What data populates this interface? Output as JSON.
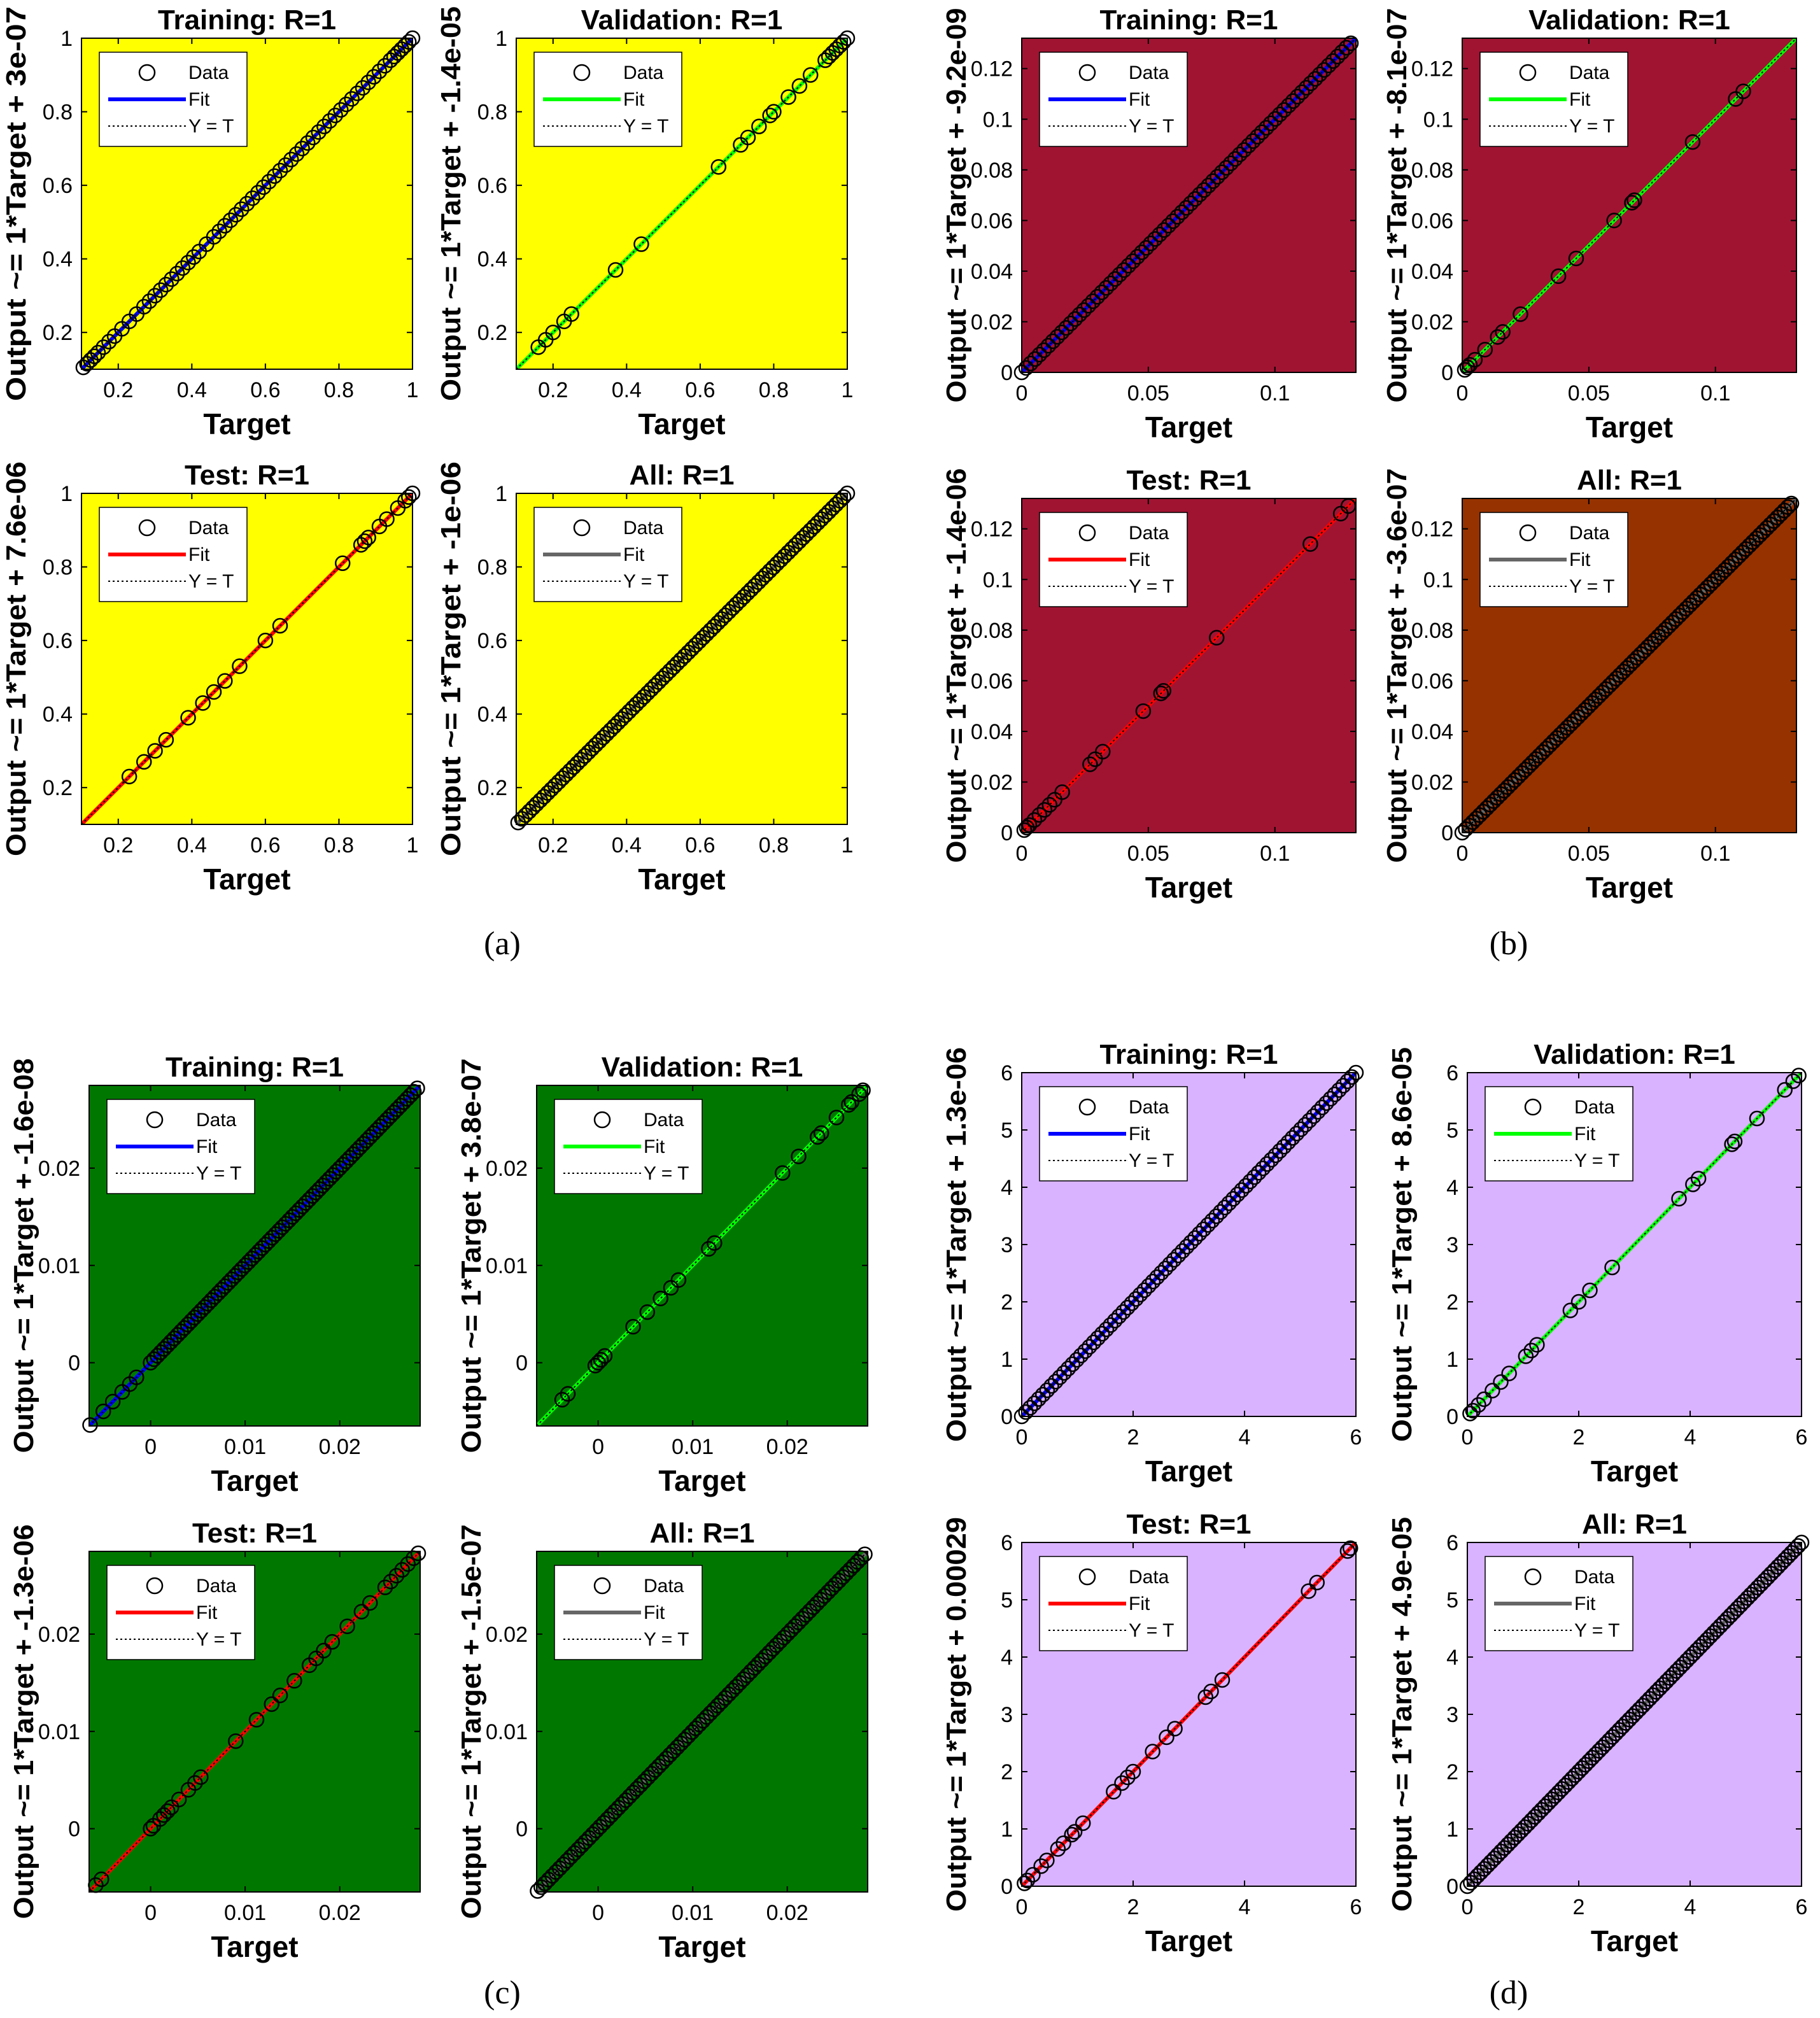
{
  "figure": {
    "panel_labels": [
      "(a)",
      "(b)",
      "(c)",
      "(d)"
    ]
  },
  "chart_data": [
    {
      "type": "scatter",
      "group": "(a)",
      "title": "Training: R=1",
      "xlabel": "Target",
      "ylabel": "Output ~= 1*Target + 3e-07",
      "xlim": [
        0.1,
        1
      ],
      "ylim": [
        0.1,
        1
      ],
      "xticks": [
        0.2,
        0.4,
        0.6,
        0.8,
        1
      ],
      "xtick_labels": [
        "0.2",
        "0.4",
        "0.6",
        "0.8",
        "1"
      ],
      "yticks": [
        0.2,
        0.4,
        0.6,
        0.8,
        1
      ],
      "ytick_labels": [
        "0.2",
        "0.4",
        "0.6",
        "0.8",
        "1"
      ],
      "background": "#ffff00",
      "fit_color": "#0000ff",
      "legend": [
        "Data",
        "Fit",
        "Y = T"
      ],
      "fit": {
        "slope": 1,
        "intercept": 3e-07
      },
      "points": [
        0.105,
        0.115,
        0.125,
        0.135,
        0.145,
        0.16,
        0.175,
        0.19,
        0.21,
        0.23,
        0.25,
        0.27,
        0.285,
        0.3,
        0.315,
        0.33,
        0.345,
        0.36,
        0.375,
        0.39,
        0.405,
        0.42,
        0.44,
        0.46,
        0.475,
        0.49,
        0.505,
        0.52,
        0.535,
        0.55,
        0.565,
        0.58,
        0.595,
        0.61,
        0.625,
        0.64,
        0.655,
        0.67,
        0.685,
        0.7,
        0.715,
        0.73,
        0.745,
        0.76,
        0.775,
        0.79,
        0.805,
        0.82,
        0.835,
        0.85,
        0.865,
        0.88,
        0.895,
        0.91,
        0.925,
        0.94,
        0.95,
        0.96,
        0.97,
        0.98,
        0.99,
        1.0
      ]
    },
    {
      "type": "scatter",
      "group": "(a)",
      "title": "Validation: R=1",
      "xlabel": "Target",
      "ylabel": "Output ~= 1*Target + -1.4e-05",
      "xlim": [
        0.1,
        1
      ],
      "ylim": [
        0.1,
        1
      ],
      "xticks": [
        0.2,
        0.4,
        0.6,
        0.8,
        1
      ],
      "xtick_labels": [
        "0.2",
        "0.4",
        "0.6",
        "0.8",
        "1"
      ],
      "yticks": [
        0.2,
        0.4,
        0.6,
        0.8,
        1
      ],
      "ytick_labels": [
        "0.2",
        "0.4",
        "0.6",
        "0.8",
        "1"
      ],
      "background": "#ffff00",
      "fit_color": "#00ff00",
      "legend": [
        "Data",
        "Fit",
        "Y = T"
      ],
      "fit": {
        "slope": 1,
        "intercept": -1.4e-05
      },
      "points": [
        0.16,
        0.18,
        0.2,
        0.23,
        0.25,
        0.37,
        0.44,
        0.65,
        0.71,
        0.73,
        0.76,
        0.79,
        0.8,
        0.84,
        0.87,
        0.9,
        0.94,
        0.95,
        0.96,
        0.97,
        0.98,
        0.99,
        1.0
      ]
    },
    {
      "type": "scatter",
      "group": "(a)",
      "title": "Test: R=1",
      "xlabel": "Target",
      "ylabel": "Output ~= 1*Target + 7.6e-06",
      "xlim": [
        0.1,
        1
      ],
      "ylim": [
        0.1,
        1
      ],
      "xticks": [
        0.2,
        0.4,
        0.6,
        0.8,
        1
      ],
      "xtick_labels": [
        "0.2",
        "0.4",
        "0.6",
        "0.8",
        "1"
      ],
      "yticks": [
        0.2,
        0.4,
        0.6,
        0.8,
        1
      ],
      "ytick_labels": [
        "0.2",
        "0.4",
        "0.6",
        "0.8",
        "1"
      ],
      "background": "#ffff00",
      "fit_color": "#ff0000",
      "legend": [
        "Data",
        "Fit",
        "Y = T"
      ],
      "fit": {
        "slope": 1,
        "intercept": 7.6e-06
      },
      "points": [
        0.23,
        0.27,
        0.3,
        0.33,
        0.39,
        0.43,
        0.46,
        0.49,
        0.53,
        0.6,
        0.64,
        0.81,
        0.86,
        0.87,
        0.88,
        0.91,
        0.93,
        0.96,
        0.98,
        0.99,
        1.0
      ]
    },
    {
      "type": "scatter",
      "group": "(a)",
      "title": "All: R=1",
      "xlabel": "Target",
      "ylabel": "Output ~= 1*Target + -1e-06",
      "xlim": [
        0.1,
        1
      ],
      "ylim": [
        0.1,
        1
      ],
      "xticks": [
        0.2,
        0.4,
        0.6,
        0.8,
        1
      ],
      "xtick_labels": [
        "0.2",
        "0.4",
        "0.6",
        "0.8",
        "1"
      ],
      "yticks": [
        0.2,
        0.4,
        0.6,
        0.8,
        1
      ],
      "ytick_labels": [
        "0.2",
        "0.4",
        "0.6",
        "0.8",
        "1"
      ],
      "background": "#ffff00",
      "fit_color": "#666666",
      "legend": [
        "Data",
        "Fit",
        "Y = T"
      ],
      "fit": {
        "slope": 1,
        "intercept": -1e-06
      },
      "dense": {
        "from": 0.105,
        "to": 1.0,
        "count": 90
      }
    },
    {
      "type": "scatter",
      "group": "(b)",
      "title": "Training: R=1",
      "xlabel": "Target",
      "ylabel": "Output ~= 1*Target + -9.2e-09",
      "xlim": [
        0,
        0.132
      ],
      "ylim": [
        0,
        0.132
      ],
      "xticks": [
        0,
        0.05,
        0.1
      ],
      "xtick_labels": [
        "0",
        "0.05",
        "0.1"
      ],
      "yticks": [
        0,
        0.02,
        0.04,
        0.06,
        0.08,
        0.1,
        0.12
      ],
      "ytick_labels": [
        "0",
        "0.02",
        "0.04",
        "0.06",
        "0.08",
        "0.1",
        "0.12"
      ],
      "background": "#a01432",
      "fit_color": "#0000ff",
      "legend": [
        "Data",
        "Fit",
        "Y = T"
      ],
      "fit": {
        "slope": 1,
        "intercept": -9.2e-09
      },
      "dense": {
        "from": 0,
        "to": 0.13,
        "count": 75
      }
    },
    {
      "type": "scatter",
      "group": "(b)",
      "title": "Validation: R=1",
      "xlabel": "Target",
      "ylabel": "Output ~= 1*Target + -8.1e-07",
      "xlim": [
        0,
        0.132
      ],
      "ylim": [
        0,
        0.132
      ],
      "xticks": [
        0,
        0.05,
        0.1
      ],
      "xtick_labels": [
        "0",
        "0.05",
        "0.1"
      ],
      "yticks": [
        0,
        0.02,
        0.04,
        0.06,
        0.08,
        0.1,
        0.12
      ],
      "ytick_labels": [
        "0",
        "0.02",
        "0.04",
        "0.06",
        "0.08",
        "0.1",
        "0.12"
      ],
      "background": "#a01432",
      "fit_color": "#00ff00",
      "legend": [
        "Data",
        "Fit",
        "Y = T"
      ],
      "fit": {
        "slope": 1,
        "intercept": -8.1e-07
      },
      "points": [
        0.001,
        0.002,
        0.003,
        0.005,
        0.009,
        0.014,
        0.016,
        0.023,
        0.038,
        0.045,
        0.06,
        0.067,
        0.068,
        0.091,
        0.108,
        0.111
      ]
    },
    {
      "type": "scatter",
      "group": "(b)",
      "title": "Test: R=1",
      "xlabel": "Target",
      "ylabel": "Output ~= 1*Target + -1.4e-06",
      "xlim": [
        0,
        0.132
      ],
      "ylim": [
        0,
        0.132
      ],
      "xticks": [
        0,
        0.05,
        0.1
      ],
      "xtick_labels": [
        "0",
        "0.05",
        "0.1"
      ],
      "yticks": [
        0,
        0.02,
        0.04,
        0.06,
        0.08,
        0.1,
        0.12
      ],
      "ytick_labels": [
        "0",
        "0.02",
        "0.04",
        "0.06",
        "0.08",
        "0.1",
        "0.12"
      ],
      "background": "#a01432",
      "fit_color": "#ff0000",
      "legend": [
        "Data",
        "Fit",
        "Y = T"
      ],
      "fit": {
        "slope": 1,
        "intercept": -1.4e-06
      },
      "points": [
        0.001,
        0.002,
        0.003,
        0.005,
        0.007,
        0.009,
        0.011,
        0.013,
        0.016,
        0.027,
        0.029,
        0.032,
        0.048,
        0.055,
        0.056,
        0.077,
        0.114,
        0.126,
        0.129
      ]
    },
    {
      "type": "scatter",
      "group": "(b)",
      "title": "All: R=1",
      "xlabel": "Target",
      "ylabel": "Output ~= 1*Target + -3.6e-07",
      "xlim": [
        0,
        0.132
      ],
      "ylim": [
        0,
        0.132
      ],
      "xticks": [
        0,
        0.05,
        0.1
      ],
      "xtick_labels": [
        "0",
        "0.05",
        "0.1"
      ],
      "yticks": [
        0,
        0.02,
        0.04,
        0.06,
        0.08,
        0.1,
        0.12
      ],
      "ytick_labels": [
        "0",
        "0.02",
        "0.04",
        "0.06",
        "0.08",
        "0.1",
        "0.12"
      ],
      "background": "#963200",
      "fit_color": "#666666",
      "legend": [
        "Data",
        "Fit",
        "Y = T"
      ],
      "fit": {
        "slope": 1,
        "intercept": -3.6e-07
      },
      "dense": {
        "from": 0,
        "to": 0.13,
        "count": 95
      }
    },
    {
      "type": "scatter",
      "group": "(c)",
      "title": "Training: R=1",
      "xlabel": "Target",
      "ylabel": "Output ~= 1*Target + -1.6e-08",
      "xlim": [
        -0.0065,
        0.0285
      ],
      "ylim": [
        -0.0065,
        0.0285
      ],
      "xticks": [
        0,
        0.01,
        0.02
      ],
      "xtick_labels": [
        "0",
        "0.01",
        "0.02"
      ],
      "yticks": [
        0,
        0.01,
        0.02
      ],
      "ytick_labels": [
        "0",
        "0.01",
        "0.02"
      ],
      "background": "#007800",
      "fit_color": "#0000ff",
      "legend": [
        "Data",
        "Fit",
        "Y = T"
      ],
      "fit": {
        "slope": 1,
        "intercept": -1.6e-08
      },
      "points": [
        -0.0064,
        -0.005,
        -0.004,
        -0.003,
        -0.0022,
        -0.0015
      ],
      "dense": {
        "from": 0,
        "to": 0.0282,
        "count": 80
      }
    },
    {
      "type": "scatter",
      "group": "(c)",
      "title": "Validation: R=1",
      "xlabel": "Target",
      "ylabel": "Output ~= 1*Target + 3.8e-07",
      "xlim": [
        -0.0065,
        0.0285
      ],
      "ylim": [
        -0.0065,
        0.0285
      ],
      "xticks": [
        0,
        0.01,
        0.02
      ],
      "xtick_labels": [
        "0",
        "0.01",
        "0.02"
      ],
      "yticks": [
        0,
        0.01,
        0.02
      ],
      "ytick_labels": [
        "0",
        "0.01",
        "0.02"
      ],
      "background": "#007800",
      "fit_color": "#00ff00",
      "legend": [
        "Data",
        "Fit",
        "Y = T"
      ],
      "fit": {
        "slope": 1,
        "intercept": 3.8e-07
      },
      "points": [
        -0.0038,
        -0.0032,
        -0.0003,
        0,
        0.0003,
        0.0007,
        0.0037,
        0.0052,
        0.0066,
        0.0077,
        0.0085,
        0.0117,
        0.0123,
        0.0195,
        0.0212,
        0.0232,
        0.0236,
        0.0252,
        0.0265,
        0.0268,
        0.0276,
        0.028
      ]
    },
    {
      "type": "scatter",
      "group": "(c)",
      "title": "Test: R=1",
      "xlabel": "Target",
      "ylabel": "Output ~= 1*Target + -1.3e-06",
      "xlim": [
        -0.0065,
        0.0285
      ],
      "ylim": [
        -0.0065,
        0.0285
      ],
      "xticks": [
        0,
        0.01,
        0.02
      ],
      "xtick_labels": [
        "0",
        "0.01",
        "0.02"
      ],
      "yticks": [
        0,
        0.01,
        0.02
      ],
      "ytick_labels": [
        "0",
        "0.01",
        "0.02"
      ],
      "background": "#007800",
      "fit_color": "#ff0000",
      "legend": [
        "Data",
        "Fit",
        "Y = T"
      ],
      "fit": {
        "slope": 1,
        "intercept": -1.3e-06
      },
      "points": [
        -0.0058,
        -0.0052,
        0,
        0.0003,
        0.001,
        0.0014,
        0.0018,
        0.0022,
        0.003,
        0.004,
        0.0047,
        0.0053,
        0.009,
        0.0112,
        0.0128,
        0.0137,
        0.0152,
        0.0168,
        0.0175,
        0.0183,
        0.0192,
        0.0208,
        0.0223,
        0.0232,
        0.0248,
        0.0254,
        0.026,
        0.0266,
        0.0272,
        0.0278,
        0.0283
      ]
    },
    {
      "type": "scatter",
      "group": "(c)",
      "title": "All: R=1",
      "xlabel": "Target",
      "ylabel": "Output ~= 1*Target + -1.5e-07",
      "xlim": [
        -0.0065,
        0.0285
      ],
      "ylim": [
        -0.0065,
        0.0285
      ],
      "xticks": [
        0,
        0.01,
        0.02
      ],
      "xtick_labels": [
        "0",
        "0.01",
        "0.02"
      ],
      "yticks": [
        0,
        0.01,
        0.02
      ],
      "ytick_labels": [
        "0",
        "0.01",
        "0.02"
      ],
      "background": "#007800",
      "fit_color": "#666666",
      "legend": [
        "Data",
        "Fit",
        "Y = T"
      ],
      "fit": {
        "slope": 1,
        "intercept": -1.5e-07
      },
      "dense": {
        "from": -0.0064,
        "to": 0.0282,
        "count": 90
      }
    },
    {
      "type": "scatter",
      "group": "(d)",
      "title": "Training: R=1",
      "xlabel": "Target",
      "ylabel": "Output ~= 1*Target + 1.3e-06",
      "xlim": [
        0,
        6
      ],
      "ylim": [
        0,
        6
      ],
      "xticks": [
        0,
        2,
        4,
        6
      ],
      "xtick_labels": [
        "0",
        "2",
        "4",
        "6"
      ],
      "yticks": [
        0,
        1,
        2,
        3,
        4,
        5,
        6
      ],
      "ytick_labels": [
        "0",
        "1",
        "2",
        "3",
        "4",
        "5",
        "6"
      ],
      "background": "#d9b3ff",
      "fit_color": "#0000ff",
      "legend": [
        "Data",
        "Fit",
        "Y = T"
      ],
      "fit": {
        "slope": 1,
        "intercept": 1.3e-06
      },
      "dense": {
        "from": 0,
        "to": 6,
        "count": 80
      }
    },
    {
      "type": "scatter",
      "group": "(d)",
      "title": "Validation: R=1",
      "xlabel": "Target",
      "ylabel": "Output ~= 1*Target + 8.6e-05",
      "xlim": [
        0,
        6
      ],
      "ylim": [
        0,
        6
      ],
      "xticks": [
        0,
        2,
        4,
        6
      ],
      "xtick_labels": [
        "0",
        "2",
        "4",
        "6"
      ],
      "yticks": [
        0,
        1,
        2,
        3,
        4,
        5,
        6
      ],
      "ytick_labels": [
        "0",
        "1",
        "2",
        "3",
        "4",
        "5",
        "6"
      ],
      "background": "#d9b3ff",
      "fit_color": "#00ff00",
      "legend": [
        "Data",
        "Fit",
        "Y = T"
      ],
      "fit": {
        "slope": 1,
        "intercept": 8.6e-05
      },
      "points": [
        0.05,
        0.1,
        0.2,
        0.3,
        0.45,
        0.6,
        0.75,
        1.05,
        1.15,
        1.25,
        1.85,
        2.0,
        2.2,
        2.6,
        3.8,
        4.05,
        4.15,
        4.75,
        4.8,
        5.2,
        5.7,
        5.85,
        5.95
      ]
    },
    {
      "type": "scatter",
      "group": "(d)",
      "title": "Test: R=1",
      "xlabel": "Target",
      "ylabel": "Output ~= 1*Target + 0.00029",
      "xlim": [
        0,
        6
      ],
      "ylim": [
        0,
        6
      ],
      "xticks": [
        0,
        2,
        4,
        6
      ],
      "xtick_labels": [
        "0",
        "2",
        "4",
        "6"
      ],
      "yticks": [
        0,
        1,
        2,
        3,
        4,
        5,
        6
      ],
      "ytick_labels": [
        "0",
        "1",
        "2",
        "3",
        "4",
        "5",
        "6"
      ],
      "background": "#d9b3ff",
      "fit_color": "#ff0000",
      "legend": [
        "Data",
        "Fit",
        "Y = T"
      ],
      "fit": {
        "slope": 1,
        "intercept": 0.00029
      },
      "points": [
        0.05,
        0.1,
        0.2,
        0.35,
        0.45,
        0.65,
        0.75,
        0.9,
        0.95,
        1.1,
        1.65,
        1.8,
        1.9,
        2.0,
        2.35,
        2.6,
        2.75,
        3.3,
        3.4,
        3.6,
        5.15,
        5.3,
        5.85,
        5.9
      ]
    },
    {
      "type": "scatter",
      "group": "(d)",
      "title": "All: R=1",
      "xlabel": "Target",
      "ylabel": "Output ~= 1*Target + 4.9e-05",
      "xlim": [
        0,
        6
      ],
      "ylim": [
        0,
        6
      ],
      "xticks": [
        0,
        2,
        4,
        6
      ],
      "xtick_labels": [
        "0",
        "2",
        "4",
        "6"
      ],
      "yticks": [
        0,
        1,
        2,
        3,
        4,
        5,
        6
      ],
      "ytick_labels": [
        "0",
        "1",
        "2",
        "3",
        "4",
        "5",
        "6"
      ],
      "background": "#d9b3ff",
      "fit_color": "#666666",
      "legend": [
        "Data",
        "Fit",
        "Y = T"
      ],
      "fit": {
        "slope": 1,
        "intercept": 4.9e-05
      },
      "dense": {
        "from": 0,
        "to": 6,
        "count": 100
      }
    }
  ]
}
